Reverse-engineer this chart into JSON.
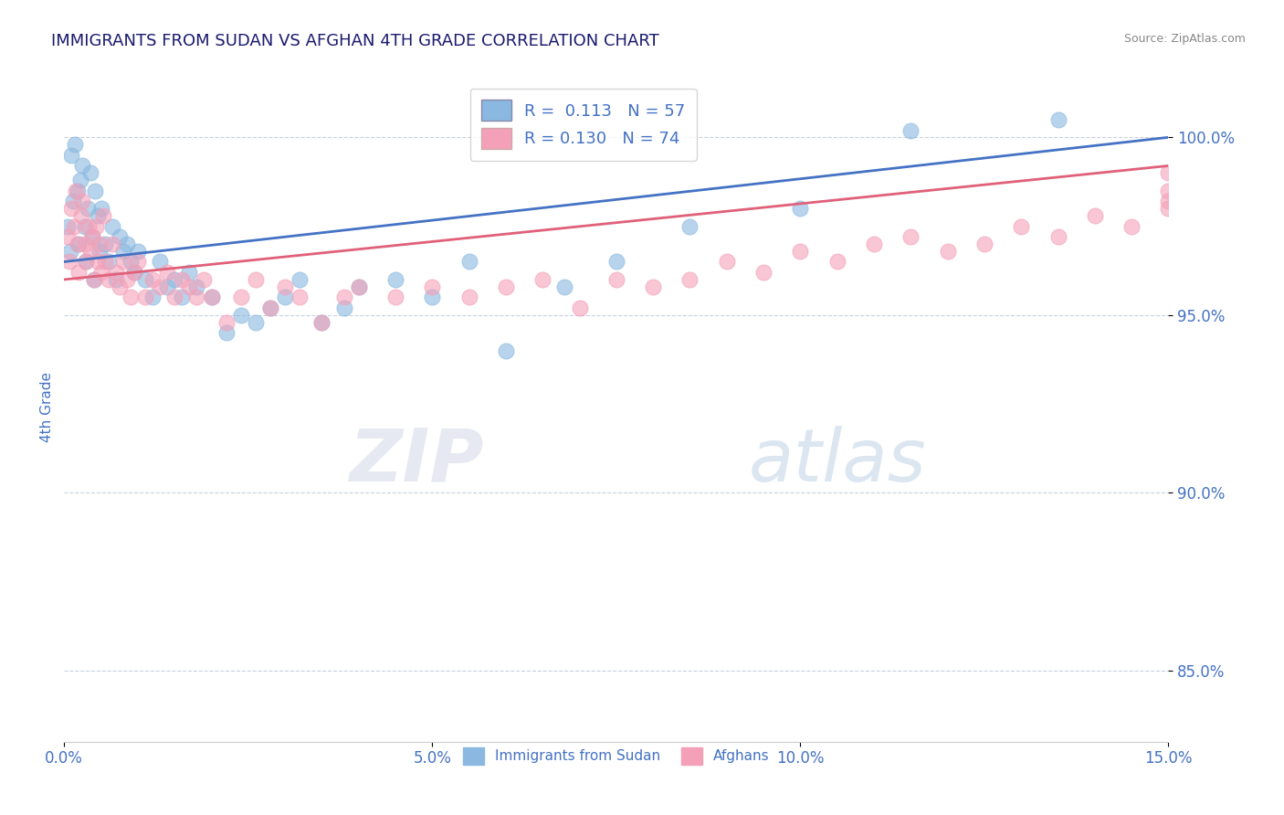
{
  "title": "IMMIGRANTS FROM SUDAN VS AFGHAN 4TH GRADE CORRELATION CHART",
  "source_text": "Source: ZipAtlas.com",
  "ylabel": "4th Grade",
  "xmin": 0.0,
  "xmax": 15.0,
  "ymin": 83.0,
  "ymax": 101.8,
  "yticks": [
    85.0,
    90.0,
    95.0,
    100.0
  ],
  "xticks": [
    0.0,
    5.0,
    10.0,
    15.0
  ],
  "xtick_labels": [
    "0.0%",
    "5.0%",
    "10.0%",
    "15.0%"
  ],
  "ytick_labels": [
    "85.0%",
    "90.0%",
    "95.0%",
    "100.0%"
  ],
  "sudan_color": "#8ab8e0",
  "afghan_color": "#f4a0b8",
  "sudan_line_color": "#4472c4",
  "afghan_line_color": "#e0607a",
  "sudan_R": 0.113,
  "sudan_N": 57,
  "afghan_R": 0.13,
  "afghan_N": 74,
  "legend_sudan_label": "Immigrants from Sudan",
  "legend_afghan_label": "Afghans",
  "title_color": "#1a1a6e",
  "axis_color": "#4472c4",
  "grid_color": "#c8d0dc",
  "background_color": "#ffffff",
  "sudan_x": [
    0.05,
    0.08,
    0.1,
    0.12,
    0.15,
    0.18,
    0.2,
    0.22,
    0.25,
    0.28,
    0.3,
    0.32,
    0.35,
    0.38,
    0.4,
    0.42,
    0.45,
    0.48,
    0.5,
    0.55,
    0.6,
    0.65,
    0.7,
    0.75,
    0.8,
    0.85,
    0.9,
    0.95,
    1.0,
    1.1,
    1.2,
    1.3,
    1.4,
    1.5,
    1.6,
    1.7,
    1.8,
    2.0,
    2.2,
    2.4,
    2.6,
    2.8,
    3.0,
    3.2,
    3.5,
    3.8,
    4.0,
    4.5,
    5.0,
    5.5,
    6.0,
    6.8,
    7.5,
    8.5,
    10.0,
    11.5,
    13.5
  ],
  "sudan_y": [
    97.5,
    96.8,
    99.5,
    98.2,
    99.8,
    98.5,
    97.0,
    98.8,
    99.2,
    97.5,
    96.5,
    98.0,
    99.0,
    97.2,
    96.0,
    98.5,
    97.8,
    96.8,
    98.0,
    97.0,
    96.5,
    97.5,
    96.0,
    97.2,
    96.8,
    97.0,
    96.5,
    96.2,
    96.8,
    96.0,
    95.5,
    96.5,
    95.8,
    96.0,
    95.5,
    96.2,
    95.8,
    95.5,
    94.5,
    95.0,
    94.8,
    95.2,
    95.5,
    96.0,
    94.8,
    95.2,
    95.8,
    96.0,
    95.5,
    96.5,
    94.0,
    95.8,
    96.5,
    97.5,
    98.0,
    100.2,
    100.5
  ],
  "afghan_x": [
    0.04,
    0.07,
    0.1,
    0.13,
    0.16,
    0.18,
    0.2,
    0.23,
    0.25,
    0.28,
    0.3,
    0.33,
    0.35,
    0.38,
    0.4,
    0.43,
    0.45,
    0.48,
    0.5,
    0.53,
    0.55,
    0.6,
    0.65,
    0.7,
    0.75,
    0.8,
    0.85,
    0.9,
    0.95,
    1.0,
    1.1,
    1.2,
    1.3,
    1.4,
    1.5,
    1.6,
    1.7,
    1.8,
    1.9,
    2.0,
    2.2,
    2.4,
    2.6,
    2.8,
    3.0,
    3.2,
    3.5,
    3.8,
    4.0,
    4.5,
    5.0,
    5.5,
    6.0,
    6.5,
    7.0,
    7.5,
    8.0,
    8.5,
    9.0,
    9.5,
    10.0,
    10.5,
    11.0,
    11.5,
    12.0,
    12.5,
    13.0,
    13.5,
    14.0,
    14.5,
    15.0,
    15.0,
    15.0,
    15.0
  ],
  "afghan_y": [
    97.2,
    96.5,
    98.0,
    97.5,
    98.5,
    97.0,
    96.2,
    97.8,
    98.2,
    97.0,
    96.5,
    97.5,
    96.8,
    97.2,
    96.0,
    97.5,
    96.5,
    97.0,
    96.2,
    97.8,
    96.5,
    96.0,
    97.0,
    96.2,
    95.8,
    96.5,
    96.0,
    95.5,
    96.2,
    96.5,
    95.5,
    96.0,
    95.8,
    96.2,
    95.5,
    96.0,
    95.8,
    95.5,
    96.0,
    95.5,
    94.8,
    95.5,
    96.0,
    95.2,
    95.8,
    95.5,
    94.8,
    95.5,
    95.8,
    95.5,
    95.8,
    95.5,
    95.8,
    96.0,
    95.2,
    96.0,
    95.8,
    96.0,
    96.5,
    96.2,
    96.8,
    96.5,
    97.0,
    97.2,
    96.8,
    97.0,
    97.5,
    97.2,
    97.8,
    97.5,
    98.0,
    98.5,
    98.2,
    99.0
  ],
  "sudan_reg_x0": 0.0,
  "sudan_reg_y0": 96.5,
  "sudan_reg_x1": 15.0,
  "sudan_reg_y1": 100.0,
  "afghan_reg_x0": 0.0,
  "afghan_reg_y0": 96.0,
  "afghan_reg_x1": 15.0,
  "afghan_reg_y1": 99.2
}
